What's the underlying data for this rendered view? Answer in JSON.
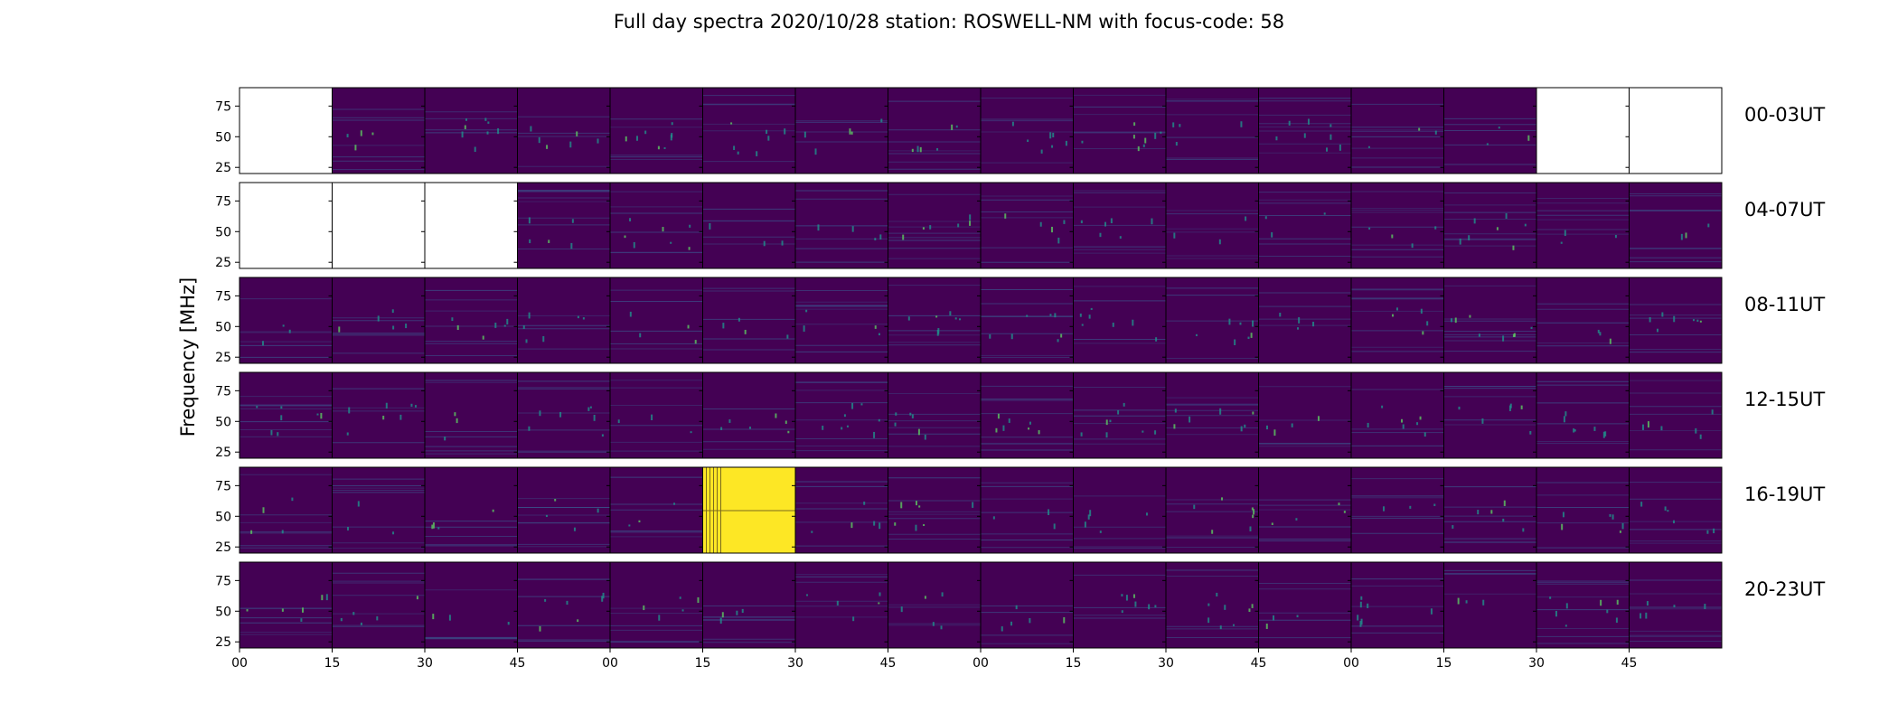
{
  "chart_data": {
    "type": "heatmap",
    "title": "Full day spectra 2020/10/28 station: ROSWELL-NM with focus-code: 58",
    "ylabel": "Frequency [MHz]",
    "yticks": [
      25,
      50,
      75
    ],
    "ylim": [
      20,
      90
    ],
    "xticks": [
      "00",
      "15",
      "30",
      "45",
      "00",
      "15",
      "30",
      "45",
      "00",
      "15",
      "30",
      "45",
      "00",
      "15",
      "30",
      "45"
    ],
    "colormap": "viridis",
    "colors": {
      "background": "#440154",
      "saturated": "#fde725",
      "bright": "#21918c"
    },
    "rows": [
      {
        "label": "00-03UT",
        "panels": [
          "empty",
          "data",
          "data",
          "data",
          "data",
          "data",
          "data",
          "data",
          "data",
          "data",
          "data",
          "data",
          "data",
          "data",
          "empty",
          "empty"
        ]
      },
      {
        "label": "04-07UT",
        "panels": [
          "empty",
          "empty",
          "empty",
          "data",
          "data",
          "data",
          "data",
          "data",
          "data",
          "data",
          "data",
          "data",
          "data",
          "data",
          "data",
          "data"
        ]
      },
      {
        "label": "08-11UT",
        "panels": [
          "data",
          "data",
          "data",
          "data",
          "data",
          "data",
          "data",
          "data",
          "data",
          "data",
          "data",
          "data",
          "data",
          "data",
          "data",
          "data"
        ]
      },
      {
        "label": "12-15UT",
        "panels": [
          "data",
          "data",
          "data",
          "data",
          "data",
          "data",
          "data",
          "data",
          "data",
          "data",
          "data",
          "data",
          "data",
          "data",
          "data",
          "data"
        ]
      },
      {
        "label": "16-19UT",
        "panels": [
          "data",
          "data",
          "data",
          "data",
          "data",
          "saturated",
          "data",
          "data",
          "data",
          "data",
          "data",
          "data",
          "data",
          "data",
          "data",
          "data"
        ]
      },
      {
        "label": "20-23UT",
        "panels": [
          "data",
          "data",
          "data",
          "data",
          "data",
          "data",
          "data",
          "data",
          "data",
          "data",
          "data",
          "data",
          "data",
          "data",
          "data",
          "data"
        ]
      }
    ]
  }
}
